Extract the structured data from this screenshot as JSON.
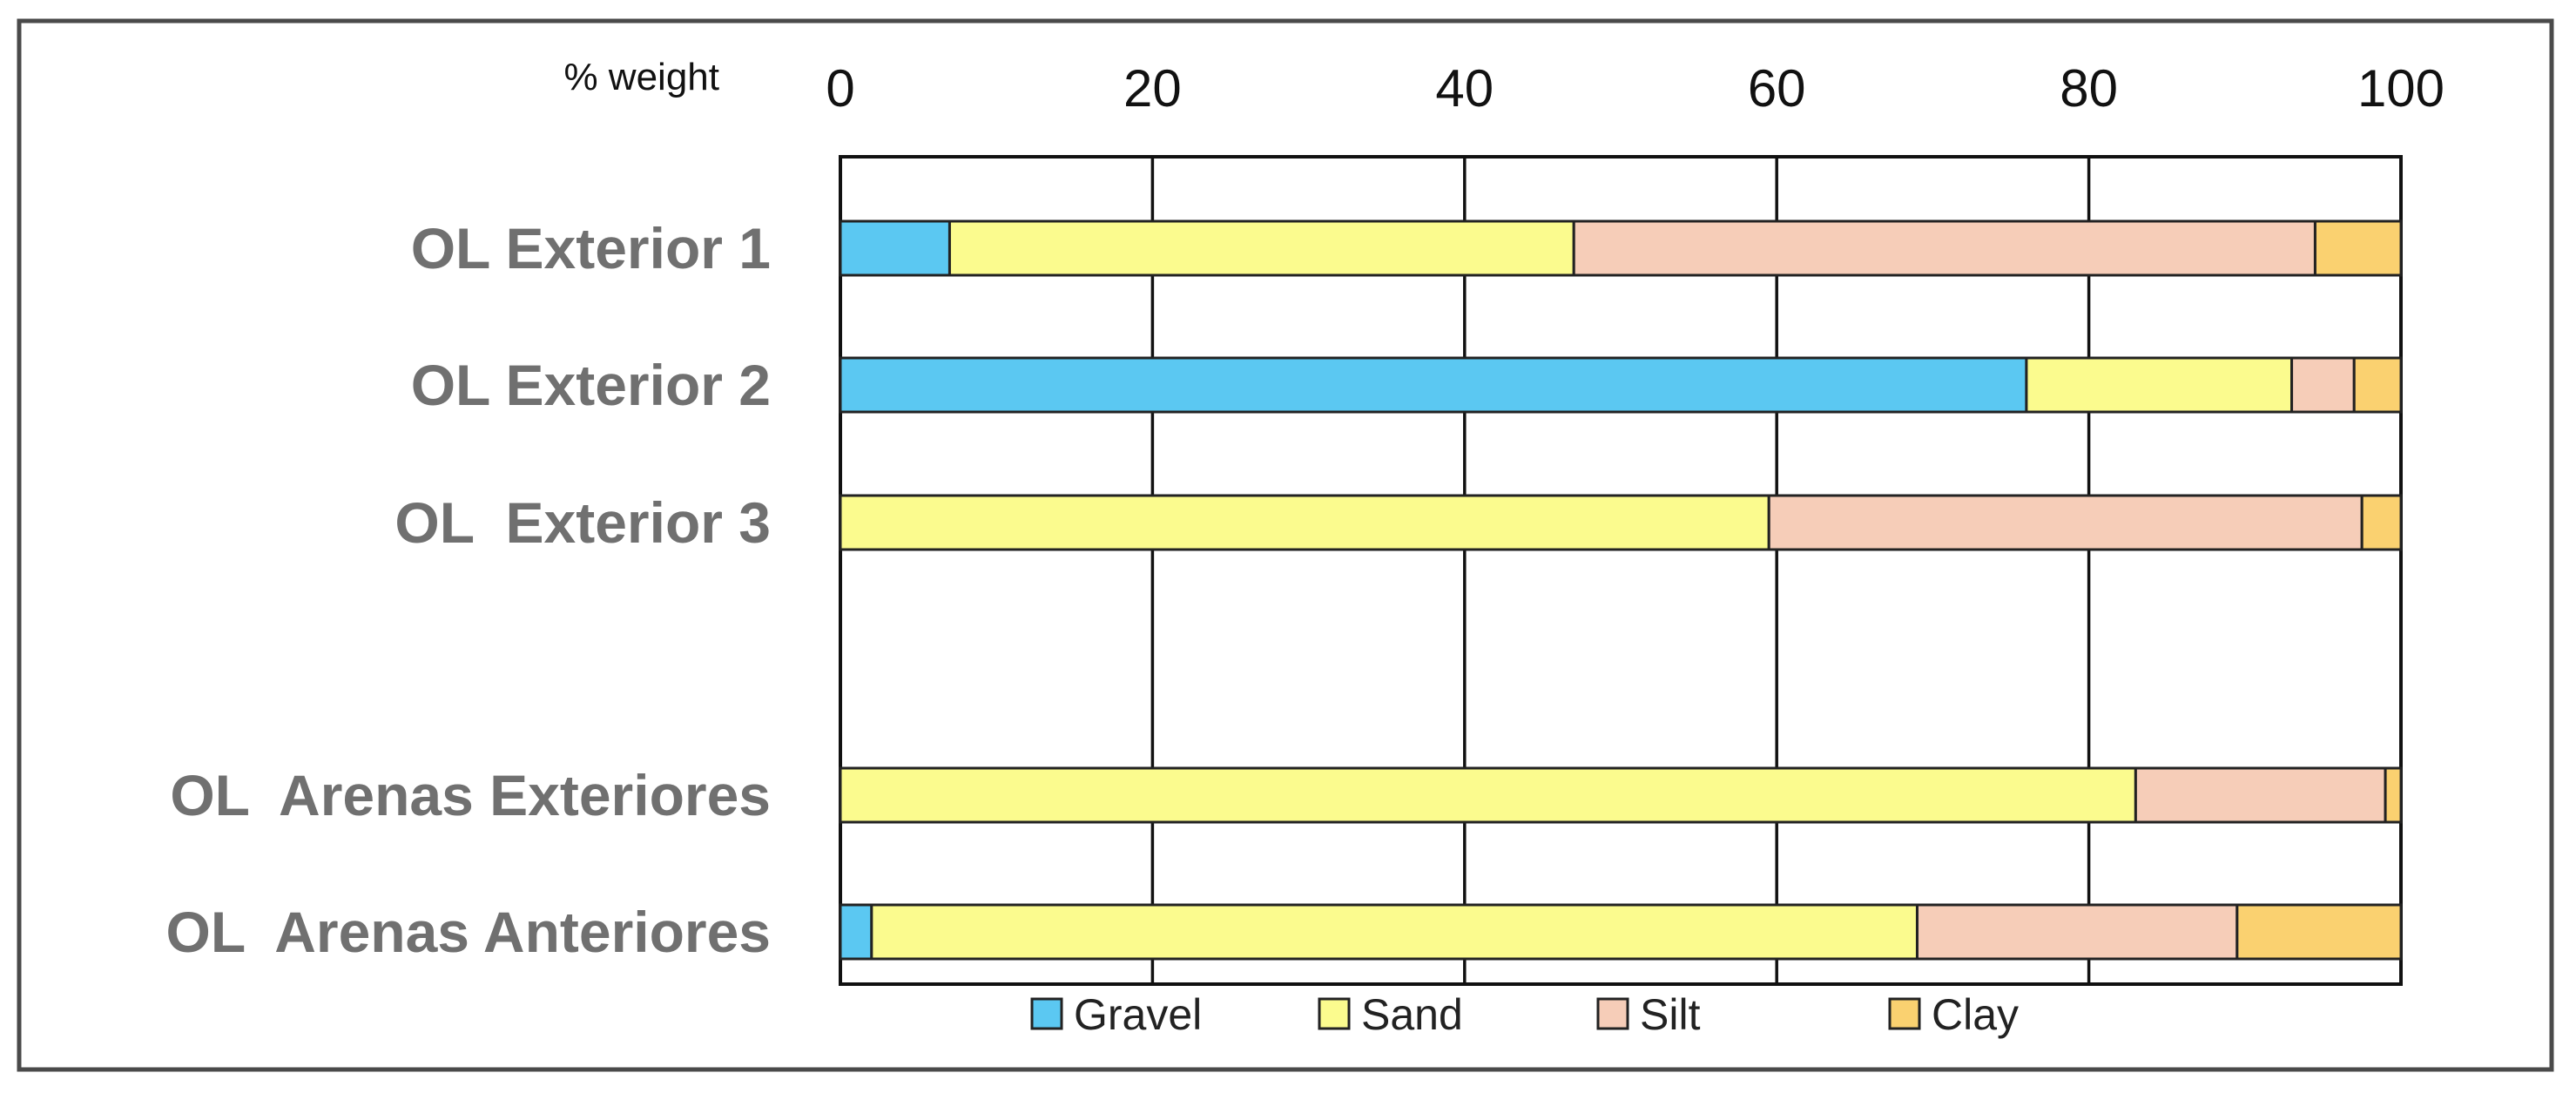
{
  "chart_data": {
    "type": "bar",
    "orientation": "horizontal",
    "stacked": true,
    "title": "",
    "xlabel": "% weight",
    "ylabel": "",
    "xlim": [
      0,
      100
    ],
    "x_ticks": [
      "0",
      "20",
      "40",
      "60",
      "80",
      "100"
    ],
    "x_axis_position": "top",
    "grid": true,
    "legend_position": "bottom",
    "categories": [
      "OL Exterior 1",
      "OL Exterior 2",
      "OL  Exterior 3",
      "OL  Arenas Exteriores",
      "OL  Arenas Anteriores"
    ],
    "series": [
      {
        "name": "Gravel",
        "color": "#5bc8f2",
        "values": [
          7,
          76,
          0,
          0,
          2
        ]
      },
      {
        "name": "Sand",
        "color": "#fbfb8e",
        "values": [
          40,
          17,
          59.5,
          83,
          67
        ]
      },
      {
        "name": "Silt",
        "color": "#f6cdb8",
        "values": [
          47.5,
          4,
          38,
          16,
          20.5
        ]
      },
      {
        "name": "Clay",
        "color": "#fad170",
        "values": [
          5.5,
          3,
          2.5,
          1,
          10.5
        ]
      }
    ]
  }
}
